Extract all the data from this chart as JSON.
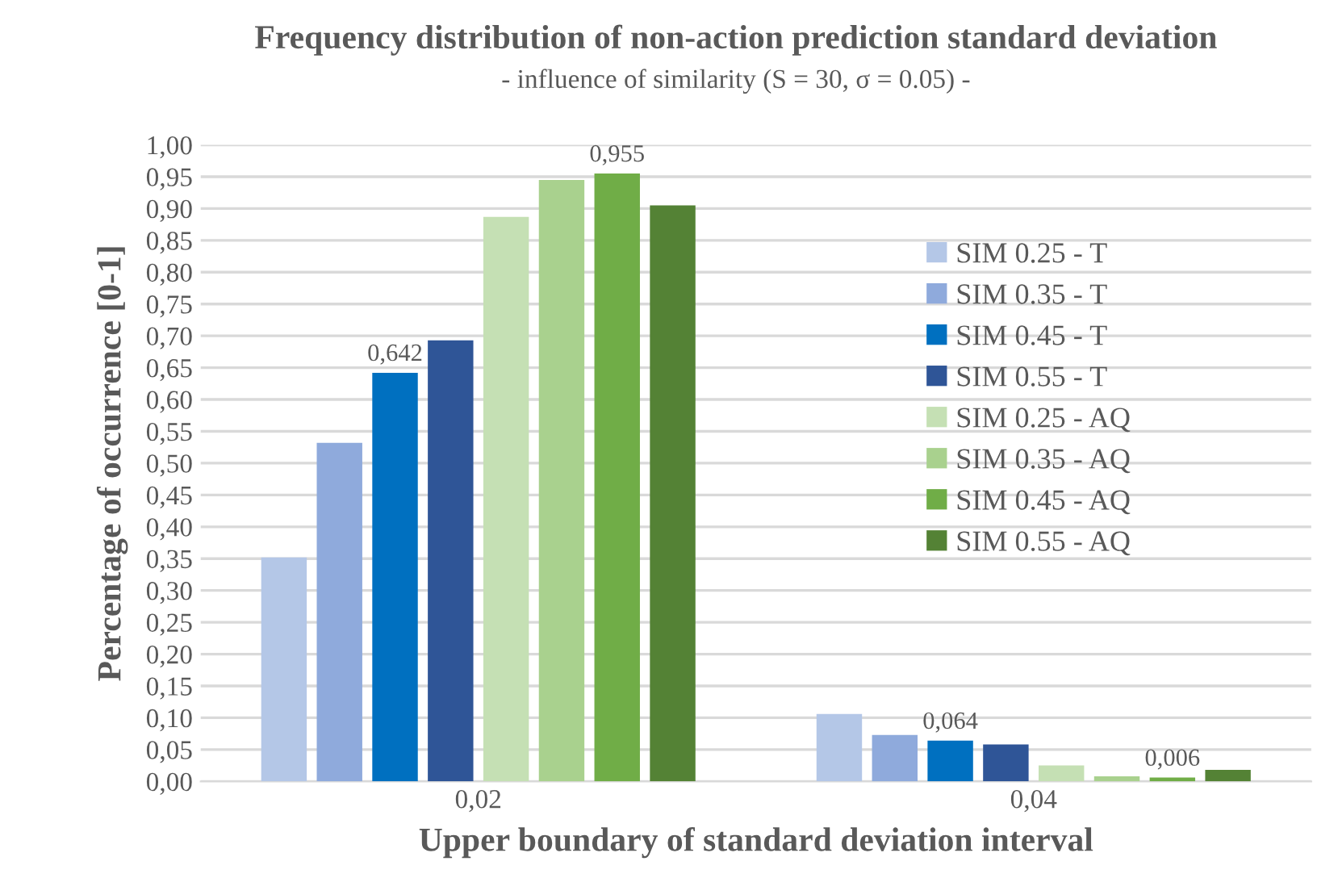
{
  "chart_data": {
    "type": "bar",
    "title": "Frequency distribution of non-action prediction standard deviation",
    "subtitle": "- influence of similarity (S = 30, σ = 0.05) -",
    "xlabel": "Upper boundary of standard deviation interval",
    "ylabel": "Percentage of occurrence [0-1]",
    "categories": [
      "0,02",
      "0,04"
    ],
    "series": [
      {
        "name": "SIM 0.25 - T",
        "color": "#b4c7e7",
        "values": [
          0.352,
          0.106
        ]
      },
      {
        "name": "SIM 0.35 - T",
        "color": "#8faadc",
        "values": [
          0.532,
          0.073
        ]
      },
      {
        "name": "SIM 0.45 - T",
        "color": "#0070c0",
        "values": [
          0.642,
          0.064
        ],
        "value_labels": [
          "0,642",
          "0,064"
        ]
      },
      {
        "name": "SIM 0.55 - T",
        "color": "#2f5597",
        "values": [
          0.693,
          0.058
        ]
      },
      {
        "name": "SIM 0.25 - AQ",
        "color": "#c5e0b4",
        "values": [
          0.887,
          0.025
        ]
      },
      {
        "name": "SIM 0.35 - AQ",
        "color": "#a9d18e",
        "values": [
          0.945,
          0.008
        ]
      },
      {
        "name": "SIM 0.45 - AQ",
        "color": "#70ad47",
        "values": [
          0.955,
          0.006
        ],
        "value_labels": [
          "0,955",
          "0,006"
        ]
      },
      {
        "name": "SIM 0.55 - AQ",
        "color": "#548235",
        "values": [
          0.905,
          0.018
        ]
      }
    ],
    "ylim": [
      0,
      1.0
    ],
    "yticks": [
      {
        "value": 0,
        "label": "0,00"
      },
      {
        "value": 0.05,
        "label": "0,05"
      },
      {
        "value": 0.1,
        "label": "0,10"
      },
      {
        "value": 0.15,
        "label": "0,15"
      },
      {
        "value": 0.2,
        "label": "0,20"
      },
      {
        "value": 0.25,
        "label": "0,25"
      },
      {
        "value": 0.3,
        "label": "0,30"
      },
      {
        "value": 0.35,
        "label": "0,35"
      },
      {
        "value": 0.4,
        "label": "0,40"
      },
      {
        "value": 0.45,
        "label": "0,45"
      },
      {
        "value": 0.5,
        "label": "0,50"
      },
      {
        "value": 0.55,
        "label": "0,55"
      },
      {
        "value": 0.6,
        "label": "0,60"
      },
      {
        "value": 0.65,
        "label": "0,65"
      },
      {
        "value": 0.7,
        "label": "0,70"
      },
      {
        "value": 0.75,
        "label": "0,75"
      },
      {
        "value": 0.8,
        "label": "0,80"
      },
      {
        "value": 0.85,
        "label": "0,85"
      },
      {
        "value": 0.9,
        "label": "0,90"
      },
      {
        "value": 0.95,
        "label": "0,95"
      },
      {
        "value": 1.0,
        "label": "1,00"
      }
    ],
    "grid": "y",
    "legend": "right"
  }
}
